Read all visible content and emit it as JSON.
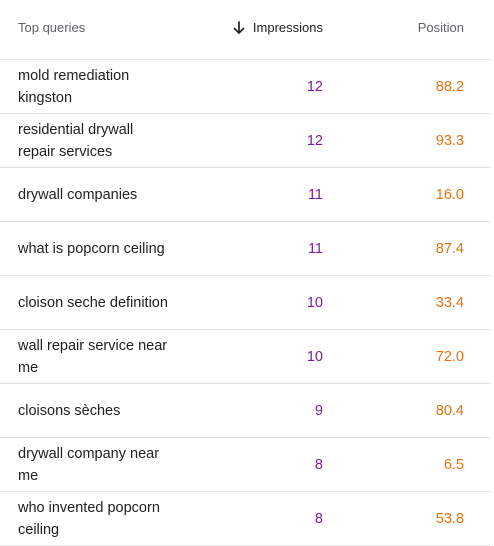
{
  "header": {
    "queries": "Top queries",
    "impressions": "Impressions",
    "position": "Position",
    "sort_icon": "arrow-down-icon"
  },
  "colors": {
    "impressions": "#7b1fa2",
    "position": "#e8710a"
  },
  "rows": [
    {
      "query": "mold remediation kingston",
      "impressions": "12",
      "position": "88.2"
    },
    {
      "query": "residential drywall repair services",
      "impressions": "12",
      "position": "93.3"
    },
    {
      "query": "drywall companies",
      "impressions": "11",
      "position": "16.0"
    },
    {
      "query": "what is popcorn ceiling",
      "impressions": "11",
      "position": "87.4"
    },
    {
      "query": "cloison seche definition",
      "impressions": "10",
      "position": "33.4"
    },
    {
      "query": "wall repair service near me",
      "impressions": "10",
      "position": "72.0"
    },
    {
      "query": "cloisons sèches",
      "impressions": "9",
      "position": "80.4"
    },
    {
      "query": "drywall company near me",
      "impressions": "8",
      "position": "6.5"
    },
    {
      "query": "who invented popcorn ceiling",
      "impressions": "8",
      "position": "53.8"
    }
  ]
}
